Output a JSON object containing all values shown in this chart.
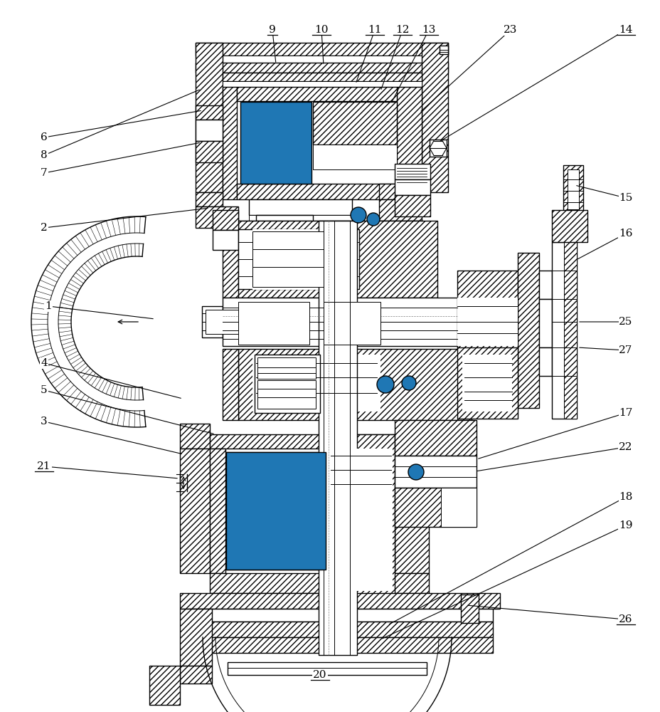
{
  "bg_color": "#ffffff",
  "figsize": [
    9.29,
    10.0
  ],
  "dpi": 100,
  "lw": 1.0,
  "hatch": "////",
  "labels_left": [
    [
      "6",
      62,
      193
    ],
    [
      "8",
      62,
      218
    ],
    [
      "7",
      62,
      243
    ],
    [
      "2",
      62,
      320
    ],
    [
      "1",
      62,
      430
    ],
    [
      "4",
      62,
      510
    ],
    [
      "5",
      62,
      548
    ],
    [
      "3",
      62,
      592
    ],
    [
      "21",
      62,
      655
    ]
  ],
  "labels_top": [
    [
      "9",
      383,
      42
    ],
    [
      "10",
      452,
      42
    ],
    [
      "11",
      527,
      42
    ],
    [
      "12",
      566,
      42
    ],
    [
      "13",
      603,
      42
    ],
    [
      "23",
      718,
      42
    ],
    [
      "14",
      880,
      42
    ]
  ],
  "labels_right": [
    [
      "15",
      880,
      278
    ],
    [
      "16",
      880,
      328
    ],
    [
      "25",
      880,
      452
    ],
    [
      "27",
      880,
      492
    ],
    [
      "17",
      880,
      580
    ],
    [
      "22",
      880,
      628
    ],
    [
      "18",
      880,
      698
    ],
    [
      "19",
      880,
      738
    ],
    [
      "26",
      880,
      870
    ]
  ],
  "labels_bottom": [
    [
      "20",
      450,
      948
    ]
  ],
  "underlined": [
    "9",
    "10",
    "11",
    "12",
    "13",
    "14",
    "20",
    "21",
    "26"
  ]
}
